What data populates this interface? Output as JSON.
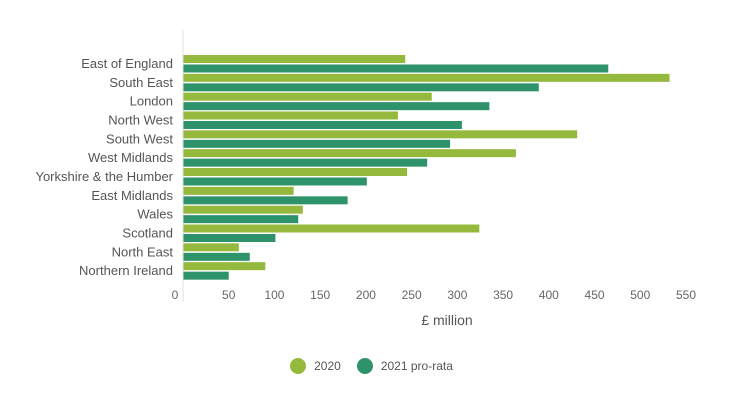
{
  "chart_data": {
    "type": "bar",
    "orientation": "horizontal",
    "categories": [
      "East of England",
      "South East",
      "London",
      "North West",
      "South West",
      "West Midlands",
      "Yorkshire & the Humber",
      "East Midlands",
      "Wales",
      "Scotland",
      "North East",
      "Northern Ireland"
    ],
    "series": [
      {
        "name": "2020",
        "color": "#95b93c",
        "values": [
          243,
          532,
          272,
          235,
          431,
          364,
          245,
          121,
          131,
          324,
          61,
          90
        ]
      },
      {
        "name": "2021 pro-rata",
        "color": "#2e936a",
        "values": [
          465,
          389,
          335,
          305,
          292,
          267,
          201,
          180,
          126,
          101,
          73,
          50
        ]
      }
    ],
    "xlabel": "£ million",
    "xlim": [
      0,
      550
    ],
    "xticks": [
      0,
      50,
      100,
      150,
      200,
      250,
      300,
      350,
      400,
      450,
      500,
      550
    ],
    "grid": false,
    "legend_position": "bottom"
  }
}
